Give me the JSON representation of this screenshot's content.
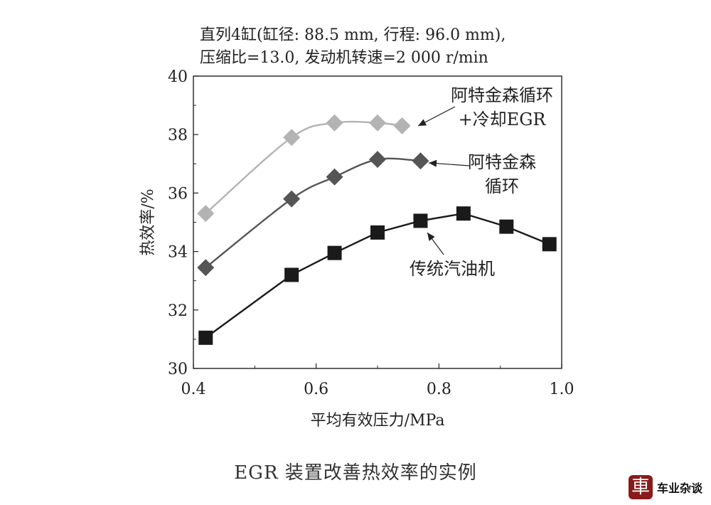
{
  "chart_data": {
    "type": "line",
    "subtitle_lines": [
      "直列4缸(缸径: 88.5 mm, 行程: 96.0 mm),",
      "压缩比=13.0, 发动机转速=2 000 r/min"
    ],
    "xlabel": "平均有效压力/MPa",
    "ylabel": "热效率/%",
    "xlim": [
      0.4,
      1.0
    ],
    "ylim": [
      30,
      40
    ],
    "xticks": [
      "0.4",
      "0.6",
      "0.8",
      "1.0"
    ],
    "yticks": [
      "30",
      "32",
      "34",
      "36",
      "38",
      "40"
    ],
    "grid": false,
    "series": [
      {
        "name": "阿特金森循环+冷却EGR",
        "label_lines": [
          "阿特金森循环",
          "+冷却EGR"
        ],
        "color": "#b3b3b3",
        "marker": "diamond",
        "x": [
          0.42,
          0.56,
          0.63,
          0.7,
          0.74
        ],
        "y": [
          35.3,
          37.9,
          38.4,
          38.4,
          38.3
        ]
      },
      {
        "name": "阿特金森循环",
        "label_lines": [
          "阿特金森",
          "循环"
        ],
        "color": "#555555",
        "marker": "diamond",
        "x": [
          0.42,
          0.56,
          0.63,
          0.7,
          0.77
        ],
        "y": [
          33.45,
          35.8,
          36.55,
          37.15,
          37.1
        ]
      },
      {
        "name": "传统汽油机",
        "label_lines": [
          "传统汽油机"
        ],
        "color": "#1a1a1a",
        "marker": "square",
        "x": [
          0.42,
          0.56,
          0.63,
          0.7,
          0.77,
          0.84,
          0.91,
          0.98
        ],
        "y": [
          31.05,
          33.2,
          33.95,
          34.65,
          35.05,
          35.3,
          34.85,
          34.25
        ]
      }
    ]
  },
  "caption": "EGR 装置改善热效率的实例",
  "watermark": {
    "seal": "車",
    "text": "车业杂谈"
  }
}
